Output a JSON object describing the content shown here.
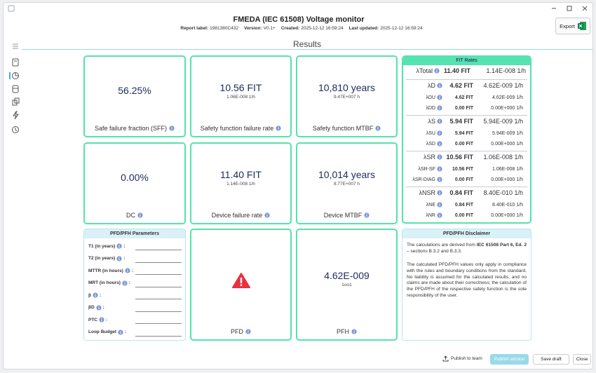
{
  "header": {
    "title": "FMEDA (IEC 61508) Voltage monitor",
    "meta": [
      {
        "label": "Report label:",
        "value": "1981380C432"
      },
      {
        "label": "Version:",
        "value": "V0.1+"
      },
      {
        "label": "Created:",
        "value": "2025-12-12 16:59:24"
      },
      {
        "label": "Last updated:",
        "value": "2025-12-12 16:59:24"
      }
    ],
    "export": "Export"
  },
  "section_title": "Results",
  "cards": [
    {
      "value": "56.25%",
      "label": "Safe failure fraction (SFF)"
    },
    {
      "value": "10.56 FIT",
      "sub": "1.06E-008 1/h",
      "label": "Safety function failure rate"
    },
    {
      "value": "10,810 years",
      "sub": "9.47E+007 h",
      "label": "Safety function MTBF"
    },
    {
      "value": "0.00%",
      "label": "DC"
    },
    {
      "value": "11.40 FIT",
      "sub": "1.14E-008 1/h",
      "label": "Device failure rate"
    },
    {
      "value": "10,014 years",
      "sub": "8.77E+007 h",
      "label": "Device MTBF"
    },
    {
      "label": "PFD",
      "status": "warning"
    },
    {
      "value": "4.62E-009",
      "sub": "1oo1",
      "label": "PFH"
    }
  ],
  "fit_rates": {
    "title": "FIT Rates",
    "total": [
      "λTotal",
      "11.40 FIT",
      "1.14E-008 1/h"
    ],
    "groups": [
      {
        "head": [
          "λD",
          "4.62 FIT",
          "4.62E-009 1/h"
        ],
        "rows": [
          [
            "λDU",
            "4.62 FIT",
            "4.62E-009 1/h"
          ],
          [
            "λDD",
            "0.00 FIT",
            "0.00E+000 1/h"
          ]
        ]
      },
      {
        "head": [
          "λS",
          "5.94 FIT",
          "5.94E-009 1/h"
        ],
        "rows": [
          [
            "λSU",
            "5.94 FIT",
            "5.94E-009 1/h"
          ],
          [
            "λSD",
            "0.00 FIT",
            "0.00E+000 1/h"
          ]
        ]
      },
      {
        "head": [
          "λSR",
          "10.56 FIT",
          "1.06E-008 1/h"
        ],
        "rows": [
          [
            "λSR-SF",
            "10.56 FIT",
            "1.06E-008 1/h"
          ],
          [
            "λSR-DIAG",
            "0.00 FIT",
            "0.00E+000 1/h"
          ]
        ]
      },
      {
        "head": [
          "λNSR",
          "0.84 FIT",
          "8.40E-010 1/h"
        ],
        "rows": [
          [
            "λNE",
            "0.84 FIT",
            "8.40E-010 1/h"
          ],
          [
            "λNR",
            "0.00 FIT",
            "0.00E+000 1/h"
          ]
        ]
      }
    ]
  },
  "parameters": {
    "title": "PFD/PFH Parameters",
    "separator": ":",
    "fields": [
      "T1 (in years)",
      "T2 (in years)",
      "MTTR (in hours)",
      "MRT (in hours)",
      "β",
      "βD",
      "PTC",
      "Loop Budget"
    ]
  },
  "disclaimer": {
    "title": "PFD/PFH Disclaimer",
    "p1": [
      "The calculations are derived from ",
      "IEC 61508 Part 6, Ed. 2",
      " – sections B.3.2 and B.3.3."
    ],
    "p2": "The calculated PFD/PFH values only apply in compliance with the rules and boundary conditions from the standard. No liability is assumed for the calculated results, and no claims are made about their correctness; the calculation of the PFD/PFH of the respective safety function is the sole responsibility of the user."
  },
  "footer": {
    "publish_team": "Publish to team",
    "publish_version": "Publish version",
    "save_draft": "Save draft",
    "close": "Close"
  }
}
